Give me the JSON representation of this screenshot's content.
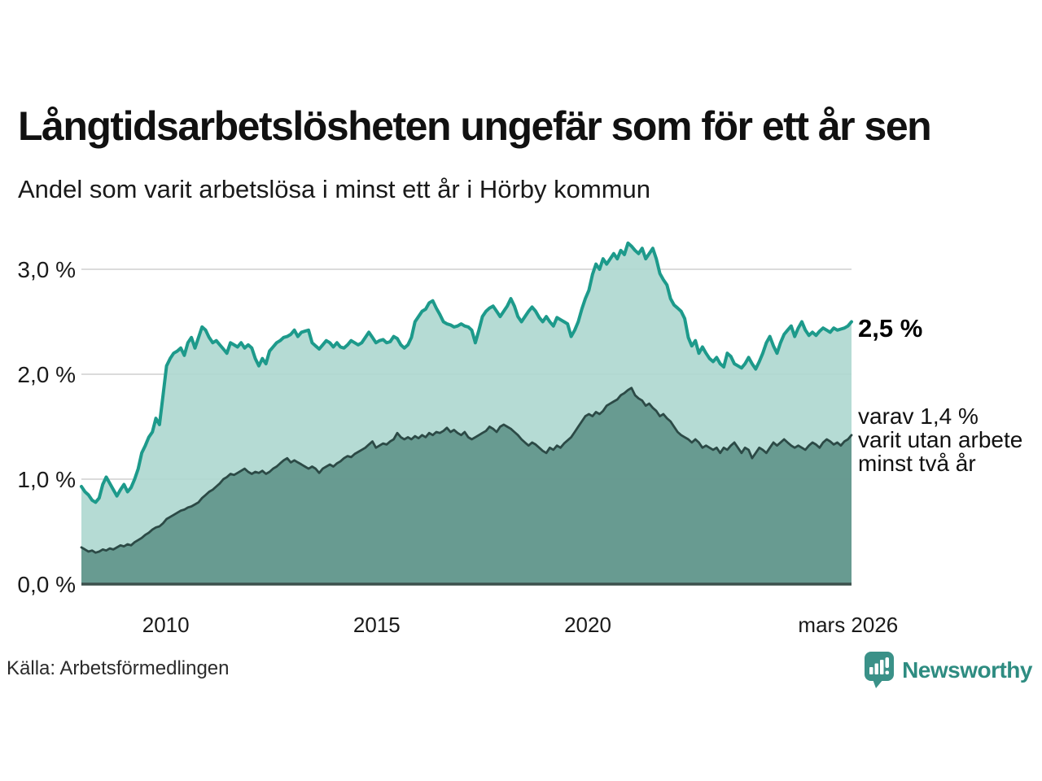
{
  "header": {
    "title": "Långtidsarbetslösheten ungefär som för ett år sen",
    "subtitle": "Andel som varit arbetslösa i minst ett år i Hörby kommun"
  },
  "chart_data": {
    "type": "area",
    "title": "Långtidsarbetslösheten ungefär som för ett år sen",
    "subtitle": "Andel som varit arbetslösa i minst ett år i Hörby kommun",
    "grid": "horizontal",
    "legend_position": "none",
    "x_domain": [
      2008.0,
      2026.25
    ],
    "ylim": [
      0,
      3.3
    ],
    "y_ticks": [
      {
        "label": "0,0 %",
        "value": 0
      },
      {
        "label": "1,0 %",
        "value": 1
      },
      {
        "label": "2,0 %",
        "value": 2
      },
      {
        "label": "3,0 %",
        "value": 3
      }
    ],
    "x_ticks": [
      {
        "label": "2010",
        "year": 2010
      },
      {
        "label": "2015",
        "year": 2015
      },
      {
        "label": "2020",
        "year": 2020
      },
      {
        "label": "mars 2026",
        "year": 2026.17
      }
    ],
    "series": [
      {
        "name": "arbetslösa minst ett år",
        "latest_label": "2,5 %",
        "line_color": "#1d9a8b",
        "fill_color": "#add7cf",
        "values": [
          0.93,
          0.88,
          0.85,
          0.8,
          0.78,
          0.82,
          0.95,
          1.02,
          0.96,
          0.9,
          0.84,
          0.9,
          0.95,
          0.88,
          0.92,
          1.0,
          1.1,
          1.25,
          1.32,
          1.4,
          1.45,
          1.58,
          1.52,
          1.8,
          2.08,
          2.15,
          2.2,
          2.22,
          2.25,
          2.18,
          2.3,
          2.35,
          2.25,
          2.35,
          2.45,
          2.42,
          2.35,
          2.3,
          2.32,
          2.28,
          2.24,
          2.2,
          2.3,
          2.28,
          2.26,
          2.3,
          2.25,
          2.28,
          2.25,
          2.15,
          2.08,
          2.15,
          2.1,
          2.22,
          2.26,
          2.3,
          2.32,
          2.35,
          2.36,
          2.38,
          2.42,
          2.36,
          2.4,
          2.41,
          2.42,
          2.3,
          2.27,
          2.24,
          2.28,
          2.32,
          2.3,
          2.26,
          2.3,
          2.26,
          2.25,
          2.28,
          2.32,
          2.3,
          2.28,
          2.3,
          2.35,
          2.4,
          2.35,
          2.3,
          2.32,
          2.33,
          2.3,
          2.31,
          2.36,
          2.34,
          2.28,
          2.25,
          2.28,
          2.35,
          2.5,
          2.55,
          2.6,
          2.62,
          2.68,
          2.7,
          2.63,
          2.57,
          2.5,
          2.48,
          2.47,
          2.45,
          2.46,
          2.48,
          2.46,
          2.45,
          2.42,
          2.3,
          2.42,
          2.55,
          2.6,
          2.63,
          2.65,
          2.6,
          2.55,
          2.6,
          2.65,
          2.72,
          2.65,
          2.55,
          2.5,
          2.55,
          2.6,
          2.64,
          2.6,
          2.54,
          2.5,
          2.55,
          2.5,
          2.46,
          2.54,
          2.52,
          2.5,
          2.48,
          2.36,
          2.42,
          2.5,
          2.62,
          2.72,
          2.8,
          2.95,
          3.05,
          3.0,
          3.1,
          3.05,
          3.1,
          3.15,
          3.1,
          3.18,
          3.14,
          3.25,
          3.22,
          3.18,
          3.15,
          3.2,
          3.1,
          3.15,
          3.2,
          3.1,
          2.96,
          2.9,
          2.85,
          2.72,
          2.66,
          2.63,
          2.6,
          2.53,
          2.35,
          2.27,
          2.32,
          2.2,
          2.26,
          2.2,
          2.15,
          2.12,
          2.16,
          2.1,
          2.07,
          2.2,
          2.17,
          2.1,
          2.08,
          2.06,
          2.1,
          2.16,
          2.1,
          2.05,
          2.12,
          2.2,
          2.3,
          2.36,
          2.27,
          2.2,
          2.3,
          2.38,
          2.42,
          2.46,
          2.36,
          2.44,
          2.5,
          2.42,
          2.37,
          2.4,
          2.37,
          2.41,
          2.44,
          2.42,
          2.4,
          2.44,
          2.42,
          2.43,
          2.44,
          2.46,
          2.5
        ]
      },
      {
        "name": "varav utan arbete minst två år",
        "latest_label": "1,4 %",
        "line_color": "#2c4a46",
        "fill_color": "#5f938a",
        "values": [
          0.35,
          0.33,
          0.31,
          0.32,
          0.3,
          0.31,
          0.33,
          0.32,
          0.34,
          0.33,
          0.35,
          0.37,
          0.36,
          0.38,
          0.37,
          0.4,
          0.42,
          0.44,
          0.47,
          0.49,
          0.52,
          0.54,
          0.55,
          0.58,
          0.62,
          0.64,
          0.66,
          0.68,
          0.7,
          0.71,
          0.73,
          0.74,
          0.76,
          0.78,
          0.82,
          0.85,
          0.88,
          0.9,
          0.93,
          0.96,
          1.0,
          1.02,
          1.05,
          1.04,
          1.06,
          1.08,
          1.1,
          1.07,
          1.05,
          1.07,
          1.06,
          1.08,
          1.05,
          1.07,
          1.1,
          1.12,
          1.15,
          1.18,
          1.2,
          1.16,
          1.18,
          1.16,
          1.14,
          1.12,
          1.1,
          1.12,
          1.1,
          1.06,
          1.1,
          1.12,
          1.14,
          1.12,
          1.15,
          1.17,
          1.2,
          1.22,
          1.21,
          1.24,
          1.26,
          1.28,
          1.3,
          1.33,
          1.36,
          1.3,
          1.32,
          1.34,
          1.33,
          1.36,
          1.38,
          1.44,
          1.4,
          1.38,
          1.4,
          1.38,
          1.41,
          1.39,
          1.42,
          1.4,
          1.44,
          1.42,
          1.45,
          1.44,
          1.46,
          1.49,
          1.45,
          1.47,
          1.44,
          1.42,
          1.45,
          1.4,
          1.38,
          1.4,
          1.42,
          1.44,
          1.46,
          1.5,
          1.48,
          1.45,
          1.5,
          1.52,
          1.5,
          1.48,
          1.45,
          1.42,
          1.38,
          1.35,
          1.32,
          1.35,
          1.33,
          1.3,
          1.27,
          1.25,
          1.3,
          1.28,
          1.32,
          1.3,
          1.34,
          1.37,
          1.4,
          1.45,
          1.5,
          1.55,
          1.6,
          1.62,
          1.6,
          1.64,
          1.62,
          1.65,
          1.7,
          1.72,
          1.74,
          1.76,
          1.8,
          1.82,
          1.85,
          1.87,
          1.8,
          1.77,
          1.75,
          1.7,
          1.72,
          1.68,
          1.65,
          1.6,
          1.62,
          1.58,
          1.55,
          1.5,
          1.45,
          1.42,
          1.4,
          1.38,
          1.35,
          1.38,
          1.35,
          1.3,
          1.32,
          1.3,
          1.28,
          1.3,
          1.25,
          1.3,
          1.28,
          1.32,
          1.35,
          1.3,
          1.25,
          1.3,
          1.28,
          1.2,
          1.25,
          1.3,
          1.28,
          1.25,
          1.3,
          1.35,
          1.32,
          1.35,
          1.38,
          1.35,
          1.32,
          1.3,
          1.32,
          1.3,
          1.28,
          1.32,
          1.35,
          1.33,
          1.3,
          1.35,
          1.38,
          1.36,
          1.33,
          1.35,
          1.32,
          1.36,
          1.38,
          1.42
        ]
      }
    ]
  },
  "annotations": {
    "latest_value": "2,5 %",
    "note_line1": "varav 1,4 %",
    "note_line2": "varit utan arbete",
    "note_line3": "minst två år"
  },
  "footer": {
    "source": "Källa: Arbetsförmedlingen",
    "brand": "Newsworthy"
  },
  "colors": {
    "accent_teal": "#1d9a8b",
    "fill_light": "#b5dbd4",
    "fill_dark": "#6f9e96",
    "dark_line": "#2c4a46",
    "gridline": "#cfcfcf",
    "baseline": "#3c504c",
    "brand_teal": "#2e8c81"
  }
}
